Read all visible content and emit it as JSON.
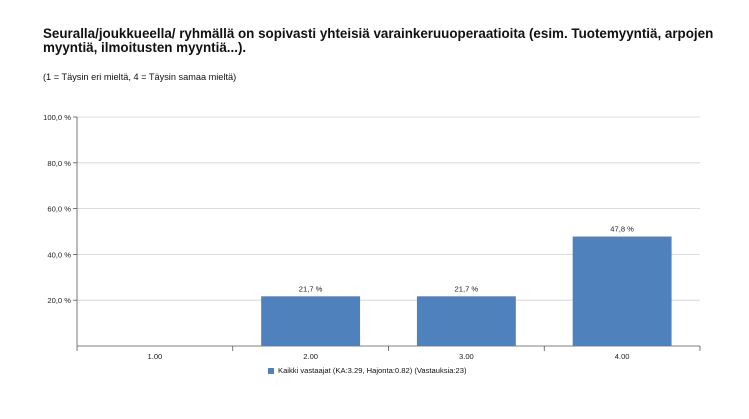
{
  "title": "Seuralla/joukkueella/ ryhmällä on sopivasti yhteisiä varainkeruuoperaatioita (esim. Tuotemyyntiä, arpojen myyntiä, ilmoitusten myyntiä...).",
  "subtitle": "(1 = Täysin eri mieltä, 4 = Täysin samaa mieltä)",
  "colors": {
    "bar": "#4f81bd",
    "axis": "#555555",
    "grid": "#d0d0d0"
  },
  "chart_data": {
    "type": "bar",
    "categories": [
      "1.00",
      "2.00",
      "3.00",
      "4.00"
    ],
    "series": [
      {
        "name": "Kaikki vastaajat (KA:3.29, Hajonta:0.82) (Vastauksia:23)",
        "values": [
          0,
          21.7,
          21.7,
          47.8
        ],
        "labels": [
          "",
          "21,7 %",
          "21,7 %",
          "47,8 %"
        ]
      }
    ],
    "yticks": [
      "20,0 %",
      "40,0 %",
      "60,0 %",
      "80,0 %",
      "100,0 %"
    ],
    "ytick_values": [
      20,
      40,
      60,
      80,
      100
    ],
    "ylim": [
      0,
      100
    ],
    "grid": true,
    "legend_position": "bottom"
  }
}
